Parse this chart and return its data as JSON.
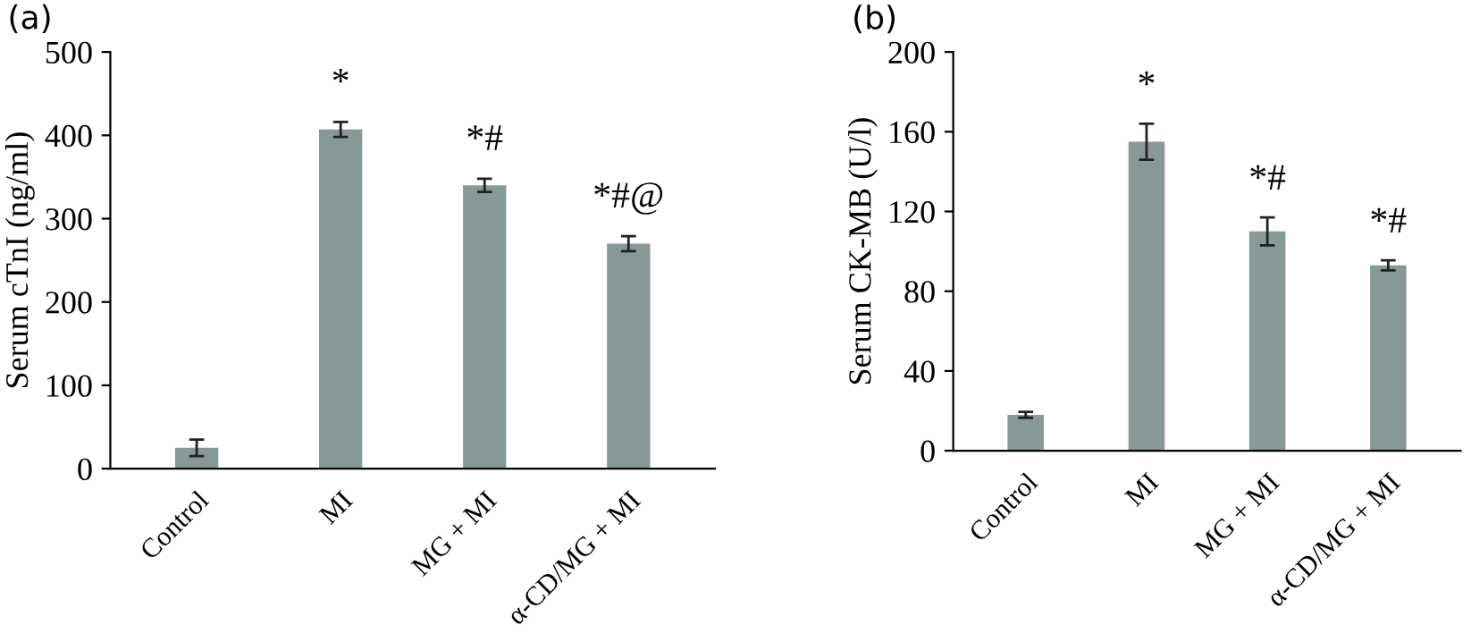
{
  "chart_data": [
    {
      "type": "bar",
      "title": "(a)",
      "ylabel": "Serum cTnI (ng/ml)",
      "categories": [
        "Control",
        "MI",
        "MG + MI",
        "α-CD/MG + MI"
      ],
      "values": [
        25,
        407,
        340,
        270
      ],
      "errors": [
        10,
        9,
        8,
        9
      ],
      "color": "#879996",
      "ylim": [
        0,
        500
      ],
      "yticks": [
        0,
        100,
        200,
        300,
        400,
        500
      ],
      "grid": false,
      "legend": false,
      "annotations": [
        "*",
        "*#",
        "*#@"
      ]
    },
    {
      "type": "bar",
      "title": "(b)",
      "ylabel": "Serum CK-MB (U/l)",
      "categories": [
        "Control",
        "MI",
        "MG + MI",
        "α-CD/MG + MI"
      ],
      "values": [
        18,
        155,
        110,
        93
      ],
      "errors": [
        1.5,
        9,
        7,
        2.5
      ],
      "color": "#879996",
      "ylim": [
        0,
        200
      ],
      "yticks": [
        0,
        40,
        80,
        120,
        160,
        200
      ],
      "grid": false,
      "legend": false,
      "annotations": [
        "*",
        "*#",
        "*#"
      ]
    }
  ]
}
